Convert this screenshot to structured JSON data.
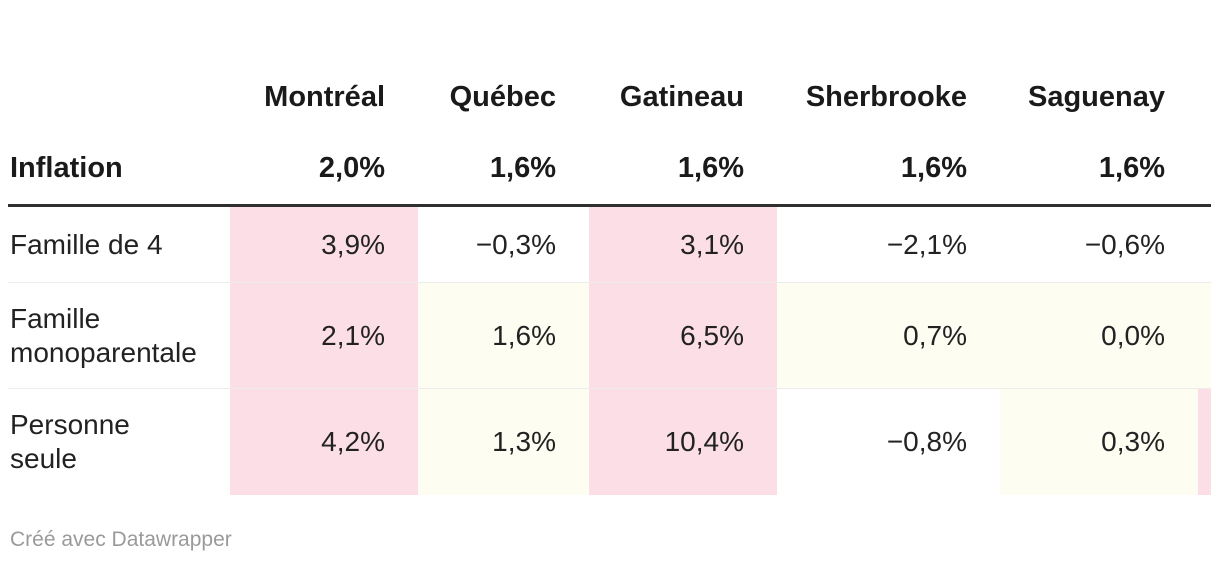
{
  "chart_data": {
    "type": "table",
    "columns": [
      "Montréal",
      "Québec",
      "Gatineau",
      "Sherbrooke",
      "Saguenay"
    ],
    "inflation_row": {
      "label": "Inflation",
      "values": [
        "2,0%",
        "1,6%",
        "1,6%",
        "1,6%",
        "1,6%"
      ]
    },
    "rows": [
      {
        "label": "Famille de 4",
        "values": [
          "3,9%",
          "−0,3%",
          "3,1%",
          "−2,1%",
          "−0,6%"
        ],
        "cell_colors": [
          "pink",
          "white",
          "pink",
          "white",
          "white",
          "white"
        ]
      },
      {
        "label": "Famille\nmonoparentale",
        "values": [
          "2,1%",
          "1,6%",
          "6,5%",
          "0,7%",
          "0,0%"
        ],
        "cell_colors": [
          "pink",
          "cream",
          "pink",
          "cream",
          "cream",
          "cream"
        ]
      },
      {
        "label": "Personne\nseule",
        "values": [
          "4,2%",
          "1,3%",
          "10,4%",
          "−0,8%",
          "0,3%"
        ],
        "cell_colors": [
          "pink",
          "cream",
          "pink",
          "white",
          "cream",
          "pink"
        ]
      }
    ],
    "palette": {
      "highlight_pink": "#fcdfe6",
      "highlight_cream": "#fdfdf2",
      "plain_white": "#ffffff",
      "header_rule": "#2f2f2f",
      "row_divider": "#ececec"
    }
  },
  "footer": {
    "attribution": "Créé avec Datawrapper"
  }
}
